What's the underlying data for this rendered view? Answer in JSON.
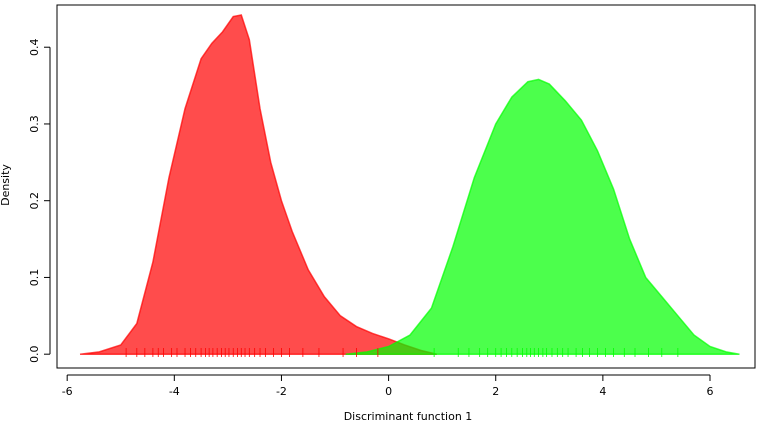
{
  "chart_data": {
    "type": "density",
    "x_label": "Discriminant function 1",
    "y_label": "Density",
    "xlim": [
      -6.19,
      6.84
    ],
    "ylim": [
      -0.018,
      0.455
    ],
    "xticks": [
      -6,
      -4,
      -2,
      0,
      2,
      4,
      6
    ],
    "yticks": [
      {
        "value": 0,
        "label": "0.0"
      },
      0.1,
      0.2,
      0.3,
      0.4
    ],
    "grid": false,
    "series": [
      {
        "color": "#ff0000",
        "x": [
          -5.76,
          -5.4,
          -5.0,
          -4.7,
          -4.4,
          -4.1,
          -3.8,
          -3.5,
          -3.3,
          -3.1,
          -2.9,
          -2.75,
          -2.6,
          -2.4,
          -2.2,
          -2.0,
          -1.8,
          -1.5,
          -1.2,
          -0.9,
          -0.6,
          -0.3,
          0,
          0.3,
          0.6,
          0.9
        ],
        "values": [
          0,
          0.003,
          0.012,
          0.04,
          0.12,
          0.23,
          0.32,
          0.385,
          0.405,
          0.42,
          0.44,
          0.442,
          0.41,
          0.32,
          0.25,
          0.2,
          0.16,
          0.11,
          0.075,
          0.05,
          0.036,
          0.027,
          0.02,
          0.012,
          0.005,
          0
        ],
        "rug": [
          -4.9,
          -4.7,
          -4.55,
          -4.4,
          -4.3,
          -4.2,
          -4.05,
          -3.95,
          -3.8,
          -3.7,
          -3.6,
          -3.5,
          -3.42,
          -3.35,
          -3.28,
          -3.2,
          -3.12,
          -3.05,
          -2.98,
          -2.9,
          -2.82,
          -2.75,
          -2.68,
          -2.6,
          -2.5,
          -2.4,
          -2.3,
          -2.15,
          -2.0,
          -1.85,
          -1.6,
          -1.3,
          -0.85,
          -0.6,
          -0.2
        ]
      },
      {
        "color": "#00ff00",
        "x": [
          -0.8,
          -0.4,
          0,
          0.4,
          0.8,
          1.2,
          1.6,
          2.0,
          2.3,
          2.6,
          2.8,
          3.0,
          3.3,
          3.6,
          3.9,
          4.2,
          4.5,
          4.8,
          5.1,
          5.4,
          5.7,
          6.0,
          6.3,
          6.55
        ],
        "values": [
          0,
          0.003,
          0.01,
          0.025,
          0.06,
          0.14,
          0.23,
          0.3,
          0.335,
          0.355,
          0.358,
          0.352,
          0.33,
          0.305,
          0.265,
          0.215,
          0.15,
          0.1,
          0.075,
          0.05,
          0.025,
          0.01,
          0.003,
          0
        ],
        "rug": [
          0.85,
          1.3,
          1.5,
          1.7,
          1.85,
          2.0,
          2.1,
          2.2,
          2.3,
          2.4,
          2.5,
          2.58,
          2.65,
          2.72,
          2.8,
          2.88,
          2.95,
          3.05,
          3.15,
          3.25,
          3.35,
          3.5,
          3.62,
          3.75,
          3.9,
          4.05,
          4.2,
          4.4,
          4.6,
          4.85,
          5.1,
          5.4
        ]
      }
    ]
  }
}
